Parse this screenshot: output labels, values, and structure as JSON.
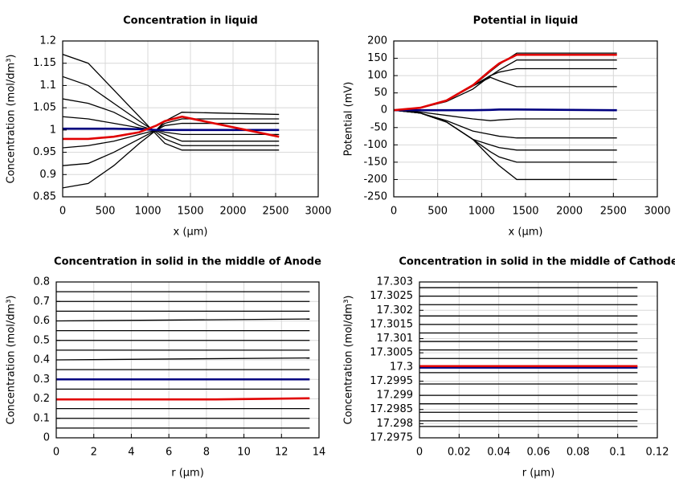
{
  "chart_data": [
    {
      "type": "line",
      "title": "Concentration in liquid",
      "xlabel": "x (µm)",
      "ylabel": "Concentration (mol/dm³)",
      "xlim": [
        0,
        3000
      ],
      "xticks": [
        0,
        500,
        1000,
        1500,
        2000,
        2500,
        3000
      ],
      "ylim": [
        0.85,
        1.2
      ],
      "yticks": [
        0.85,
        0.9,
        0.95,
        1,
        1.05,
        1.1,
        1.15,
        1.2
      ],
      "grid": true,
      "series": [
        {
          "color": "#000000",
          "x": [
            0,
            300,
            600,
            900,
            1100,
            1200,
            1400,
            2540
          ],
          "values": [
            1.17,
            1.15,
            1.09,
            1.03,
            0.99,
            0.97,
            0.955,
            0.955
          ]
        },
        {
          "color": "#000000",
          "x": [
            0,
            300,
            600,
            900,
            1100,
            1200,
            1400,
            2540
          ],
          "values": [
            1.12,
            1.1,
            1.06,
            1.02,
            0.995,
            0.98,
            0.965,
            0.965
          ]
        },
        {
          "color": "#000000",
          "x": [
            0,
            300,
            600,
            900,
            1100,
            1200,
            1400,
            2540
          ],
          "values": [
            1.07,
            1.06,
            1.04,
            1.01,
            0.998,
            0.99,
            0.975,
            0.975
          ]
        },
        {
          "color": "#000000",
          "x": [
            0,
            300,
            600,
            900,
            1100,
            1200,
            1400,
            2540
          ],
          "values": [
            1.03,
            1.025,
            1.015,
            1.005,
            1.0,
            0.995,
            0.99,
            0.99
          ]
        },
        {
          "color": "#000000",
          "x": [
            0,
            300,
            600,
            900,
            1100,
            1200,
            1400,
            2540
          ],
          "values": [
            0.96,
            0.965,
            0.975,
            0.99,
            1.0,
            1.01,
            1.015,
            1.015
          ]
        },
        {
          "color": "#000000",
          "x": [
            0,
            300,
            600,
            900,
            1100,
            1200,
            1400,
            2540
          ],
          "values": [
            0.92,
            0.925,
            0.95,
            0.98,
            1.0,
            1.015,
            1.025,
            1.025
          ]
        },
        {
          "color": "#000000",
          "x": [
            0,
            300,
            600,
            900,
            1100,
            1200,
            1400,
            2540
          ],
          "values": [
            0.87,
            0.88,
            0.92,
            0.97,
            1.0,
            1.02,
            1.04,
            1.035
          ]
        },
        {
          "color": "#000080",
          "x": [
            0,
            300,
            600,
            900,
            1100,
            1200,
            1400,
            2540
          ],
          "values": [
            1.003,
            1.003,
            1.003,
            1.002,
            1.0,
            1.0,
            1.0,
            1.0
          ]
        },
        {
          "color": "#e00000",
          "x": [
            0,
            300,
            600,
            900,
            1100,
            1200,
            1400,
            2540
          ],
          "values": [
            0.98,
            0.98,
            0.985,
            0.995,
            1.01,
            1.02,
            1.03,
            0.985
          ]
        }
      ]
    },
    {
      "type": "line",
      "title": "Potential in liquid",
      "xlabel": "x (µm)",
      "ylabel": "Potential (mV)",
      "xlim": [
        0,
        3000
      ],
      "xticks": [
        0,
        500,
        1000,
        1500,
        2000,
        2500,
        3000
      ],
      "ylim": [
        -250,
        200
      ],
      "yticks": [
        -250,
        -200,
        -150,
        -100,
        -50,
        0,
        50,
        100,
        150,
        200
      ],
      "grid": true,
      "series": [
        {
          "color": "#000000",
          "x": [
            0,
            300,
            600,
            900,
            1100,
            1200,
            1400,
            2540
          ],
          "values": [
            0,
            7,
            28,
            70,
            112,
            132,
            165,
            165
          ]
        },
        {
          "color": "#000000",
          "x": [
            0,
            300,
            600,
            900,
            1100,
            1200,
            1400,
            2540
          ],
          "values": [
            0,
            6,
            25,
            61,
            99,
            116,
            145,
            145
          ]
        },
        {
          "color": "#000000",
          "x": [
            0,
            300,
            600,
            900,
            1100,
            1200,
            1400,
            2540
          ],
          "values": [
            0,
            7,
            28,
            70,
            100,
            110,
            120,
            120
          ]
        },
        {
          "color": "#000000",
          "x": [
            0,
            300,
            600,
            900,
            1100,
            1200,
            1400,
            2540
          ],
          "values": [
            0,
            7,
            28,
            70,
            95,
            85,
            68,
            68
          ]
        },
        {
          "color": "#000000",
          "x": [
            0,
            300,
            600,
            900,
            1100,
            1200,
            1400,
            2540
          ],
          "values": [
            0,
            -5,
            -15,
            -25,
            -30,
            -28,
            -25,
            -25
          ]
        },
        {
          "color": "#000000",
          "x": [
            0,
            300,
            600,
            900,
            1100,
            1200,
            1400,
            2540
          ],
          "values": [
            0,
            -8,
            -30,
            -60,
            -70,
            -75,
            -80,
            -80
          ]
        },
        {
          "color": "#000000",
          "x": [
            0,
            300,
            600,
            900,
            1100,
            1200,
            1400,
            2540
          ],
          "values": [
            0,
            -8,
            -34,
            -84,
            -100,
            -108,
            -115,
            -115
          ]
        },
        {
          "color": "#000000",
          "x": [
            0,
            300,
            600,
            900,
            1100,
            1200,
            1400,
            2540
          ],
          "values": [
            0,
            -8,
            -34,
            -84,
            -120,
            -135,
            -150,
            -150
          ]
        },
        {
          "color": "#000000",
          "x": [
            0,
            300,
            600,
            900,
            1100,
            1200,
            1400,
            2540
          ],
          "values": [
            0,
            -8,
            -34,
            -84,
            -136,
            -160,
            -200,
            -200
          ]
        },
        {
          "color": "#000080",
          "x": [
            0,
            300,
            600,
            900,
            1100,
            1200,
            1400,
            2540
          ],
          "values": [
            0,
            0,
            0,
            0,
            1,
            2,
            2,
            0
          ]
        },
        {
          "color": "#e00000",
          "x": [
            0,
            300,
            600,
            900,
            1100,
            1200,
            1400,
            2540
          ],
          "values": [
            0,
            7,
            28,
            72,
            115,
            135,
            160,
            160
          ]
        }
      ]
    },
    {
      "type": "line",
      "title": "Concentration in solid in the middle of Anode",
      "xlabel": "r (µm)",
      "ylabel": "Concentration (mol/dm³)",
      "xlim": [
        0,
        14
      ],
      "xticks": [
        0,
        2,
        4,
        6,
        8,
        10,
        12,
        14
      ],
      "ylim": [
        0,
        0.8
      ],
      "yticks": [
        0,
        0.1,
        0.2,
        0.3,
        0.4,
        0.5,
        0.6,
        0.7,
        0.8
      ],
      "grid": true,
      "series": [
        {
          "color": "#000000",
          "x": [
            0,
            13.5
          ],
          "values": [
            0.75,
            0.75
          ]
        },
        {
          "color": "#000000",
          "x": [
            0,
            13.5
          ],
          "values": [
            0.7,
            0.7
          ]
        },
        {
          "color": "#000000",
          "x": [
            0,
            13.5
          ],
          "values": [
            0.65,
            0.65
          ]
        },
        {
          "color": "#000000",
          "x": [
            0,
            13.5
          ],
          "values": [
            0.6,
            0.61
          ]
        },
        {
          "color": "#000000",
          "x": [
            0,
            13.5
          ],
          "values": [
            0.55,
            0.55
          ]
        },
        {
          "color": "#000000",
          "x": [
            0,
            13.5
          ],
          "values": [
            0.5,
            0.5
          ]
        },
        {
          "color": "#000000",
          "x": [
            0,
            13.5
          ],
          "values": [
            0.45,
            0.45
          ]
        },
        {
          "color": "#000000",
          "x": [
            0,
            13.5
          ],
          "values": [
            0.4,
            0.41
          ]
        },
        {
          "color": "#000000",
          "x": [
            0,
            13.5
          ],
          "values": [
            0.35,
            0.35
          ]
        },
        {
          "color": "#000000",
          "x": [
            0,
            13.5
          ],
          "values": [
            0.25,
            0.25
          ]
        },
        {
          "color": "#000000",
          "x": [
            0,
            13.5
          ],
          "values": [
            0.15,
            0.15
          ]
        },
        {
          "color": "#000000",
          "x": [
            0,
            13.5
          ],
          "values": [
            0.1,
            0.1
          ]
        },
        {
          "color": "#000000",
          "x": [
            0,
            13.5
          ],
          "values": [
            0.05,
            0.05
          ]
        },
        {
          "color": "#000080",
          "x": [
            0,
            13.5
          ],
          "values": [
            0.3,
            0.3
          ]
        },
        {
          "color": "#e00000",
          "x": [
            0,
            8.5,
            13.5
          ],
          "values": [
            0.197,
            0.197,
            0.203
          ]
        }
      ]
    },
    {
      "type": "line",
      "title": "Concentration in solid in the middle of Cathode",
      "xlabel": "r (µm)",
      "ylabel": "Concentration (mol/dm³)",
      "xlim": [
        0,
        0.12
      ],
      "xticks": [
        0,
        0.02,
        0.04,
        0.06,
        0.08,
        0.1,
        0.12
      ],
      "ylim": [
        17.2975,
        17.303
      ],
      "yticks": [
        17.2975,
        17.298,
        17.2985,
        17.299,
        17.2995,
        17.3,
        17.3005,
        17.301,
        17.3015,
        17.302,
        17.3025,
        17.303
      ],
      "grid": true,
      "series": [
        {
          "color": "#000000",
          "x": [
            0,
            0.11
          ],
          "values": [
            17.3028,
            17.3028
          ]
        },
        {
          "color": "#000000",
          "x": [
            0,
            0.11
          ],
          "values": [
            17.3025,
            17.3025
          ]
        },
        {
          "color": "#000000",
          "x": [
            0,
            0.11
          ],
          "values": [
            17.3022,
            17.3022
          ]
        },
        {
          "color": "#000000",
          "x": [
            0,
            0.11
          ],
          "values": [
            17.3018,
            17.3018
          ]
        },
        {
          "color": "#000000",
          "x": [
            0,
            0.11
          ],
          "values": [
            17.3015,
            17.3015
          ]
        },
        {
          "color": "#000000",
          "x": [
            0,
            0.11
          ],
          "values": [
            17.3012,
            17.3012
          ]
        },
        {
          "color": "#000000",
          "x": [
            0,
            0.11
          ],
          "values": [
            17.3009,
            17.3009
          ]
        },
        {
          "color": "#000000",
          "x": [
            0,
            0.11
          ],
          "values": [
            17.3006,
            17.3006
          ]
        },
        {
          "color": "#000000",
          "x": [
            0,
            0.11
          ],
          "values": [
            17.3003,
            17.3003
          ]
        },
        {
          "color": "#000000",
          "x": [
            0,
            0.11
          ],
          "values": [
            17.2998,
            17.2998
          ]
        },
        {
          "color": "#000000",
          "x": [
            0,
            0.11
          ],
          "values": [
            17.2994,
            17.2994
          ]
        },
        {
          "color": "#000000",
          "x": [
            0,
            0.11
          ],
          "values": [
            17.299,
            17.299
          ]
        },
        {
          "color": "#000000",
          "x": [
            0,
            0.11
          ],
          "values": [
            17.2987,
            17.2987
          ]
        },
        {
          "color": "#000000",
          "x": [
            0,
            0.11
          ],
          "values": [
            17.2984,
            17.2984
          ]
        },
        {
          "color": "#000000",
          "x": [
            0,
            0.11
          ],
          "values": [
            17.2981,
            17.2981
          ]
        },
        {
          "color": "#000000",
          "x": [
            0,
            0.11
          ],
          "values": [
            17.2979,
            17.2979
          ]
        },
        {
          "color": "#000080",
          "x": [
            0,
            0.11
          ],
          "values": [
            17.29998,
            17.29998
          ]
        },
        {
          "color": "#e00000",
          "x": [
            0,
            0.11
          ],
          "values": [
            17.30003,
            17.30003
          ]
        }
      ]
    }
  ]
}
